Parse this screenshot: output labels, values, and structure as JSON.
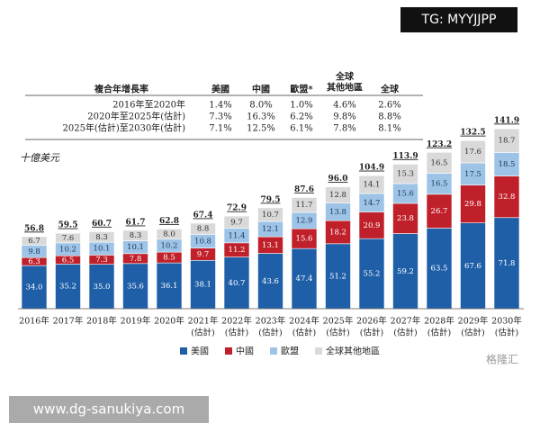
{
  "chart_data": {
    "type": "stacked-bar",
    "unit_label": "十億美元",
    "categories": [
      [
        "2016年"
      ],
      [
        "2017年"
      ],
      [
        "2018年"
      ],
      [
        "2019年"
      ],
      [
        "2020年"
      ],
      [
        "2021年",
        "(估計)"
      ],
      [
        "2022年",
        "(估計)"
      ],
      [
        "2023年",
        "(估計)"
      ],
      [
        "2024年",
        "(估計)"
      ],
      [
        "2025年",
        "(估計)"
      ],
      [
        "2026年",
        "(估計)"
      ],
      [
        "2027年",
        "(估計)"
      ],
      [
        "2028年",
        "(估計)"
      ],
      [
        "2029年",
        "(估計)"
      ],
      [
        "2030年",
        "(估計)"
      ]
    ],
    "series": [
      {
        "name": "美國",
        "color": "#1f5fa8",
        "label_color": "#ffffff",
        "values": [
          34.0,
          35.2,
          35.0,
          35.6,
          36.1,
          38.1,
          40.7,
          43.6,
          47.4,
          51.2,
          55.2,
          59.2,
          63.5,
          67.6,
          71.8
        ],
        "value_labels": [
          "34.0",
          "35.2",
          "35.0",
          "35.6",
          "36.1",
          "38.1",
          "40.7",
          "43.6",
          "47.4",
          "51.2",
          "55.2",
          "59.2",
          "63.5",
          "67.6",
          "71.8"
        ]
      },
      {
        "name": "中國",
        "color": "#c0202a",
        "label_color": "#ffffff",
        "values": [
          6.3,
          6.5,
          7.3,
          7.8,
          8.5,
          9.7,
          11.2,
          13.1,
          15.6,
          18.2,
          20.9,
          23.8,
          26.7,
          29.8,
          32.8
        ],
        "value_labels": [
          "6.3",
          "6.5",
          "7.3",
          "7.8",
          "8.5",
          "9.7",
          "11.2",
          "13.1",
          "15.6",
          "18.2",
          "20.9",
          "23.8",
          "26.7",
          "29.8",
          "32.8"
        ]
      },
      {
        "name": "歐盟",
        "color": "#9dc3e6",
        "label_color": "#1f3a5f",
        "values": [
          9.8,
          10.2,
          10.1,
          10.1,
          10.2,
          10.8,
          11.4,
          12.1,
          12.9,
          13.8,
          14.7,
          15.6,
          16.5,
          17.5,
          18.5
        ],
        "value_labels": [
          "9.8",
          "10.2",
          "10.1",
          "10.1",
          "10.2",
          "10.8",
          "11.4",
          "12.1",
          "12.9",
          "13.8",
          "14.7",
          "15.6",
          "16.5",
          "17.5",
          "18.5"
        ]
      },
      {
        "name": "全球其他地區",
        "color": "#d9d9d9",
        "label_color": "#333333",
        "values": [
          6.7,
          7.6,
          8.3,
          8.3,
          8.0,
          8.8,
          9.7,
          10.7,
          11.7,
          12.8,
          14.1,
          15.3,
          16.5,
          17.6,
          18.7
        ],
        "value_labels": [
          "6.7",
          "7.6",
          "8.3",
          "8.3",
          "8.0",
          "8.8",
          "9.7",
          "10.7",
          "11.7",
          "12.8",
          "14.1",
          "15.3",
          "16.5",
          "17.6",
          "18.7"
        ]
      }
    ],
    "totals": [
      56.8,
      59.5,
      60.7,
      61.7,
      62.8,
      67.4,
      72.9,
      79.5,
      87.6,
      96.0,
      104.9,
      113.9,
      123.2,
      132.5,
      141.9
    ],
    "total_labels": [
      "56.8",
      "59.5",
      "60.7",
      "61.7",
      "62.8",
      "67.4",
      "72.9",
      "79.5",
      "87.6",
      "96.0",
      "104.9",
      "113.9",
      "123.2",
      "132.5",
      "141.9"
    ]
  },
  "table": {
    "header": [
      [
        "複合年增長率"
      ],
      [
        "美國"
      ],
      [
        "中國"
      ],
      [
        "歐盟*"
      ],
      [
        "全球",
        "其他地區"
      ],
      [
        "全球"
      ]
    ],
    "rows": [
      [
        "2016年至2020年",
        "1.4%",
        "8.0%",
        "1.0%",
        "4.6%",
        "2.6%"
      ],
      [
        "2020年至2025年(估計)",
        "7.3%",
        "16.3%",
        "6.2%",
        "9.8%",
        "8.8%"
      ],
      [
        "2025年(估計)至2030年(估計)",
        "7.1%",
        "12.5%",
        "6.1%",
        "7.8%",
        "8.1%"
      ]
    ]
  },
  "watermarks": {
    "top": "TG: MYYJJPP",
    "bottom": "www.dg-sanukiya.com",
    "logo": "格隆汇"
  }
}
